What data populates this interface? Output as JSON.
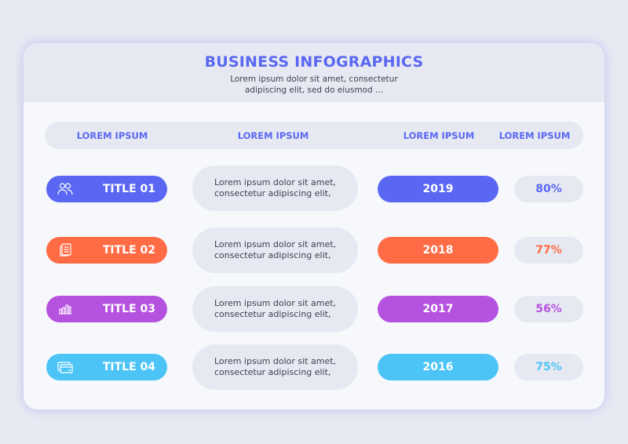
{
  "header": {
    "title": "BUSINESS INFOGRAPHICS",
    "subtitle_line1": "Lorem ipsum dolor sit amet, consectetur",
    "subtitle_line2": "adipiscing elit, sed do eiusmod ..."
  },
  "columns": [
    "LOREM IPSUM",
    "LOREM IPSUM",
    "LOREM IPSUM",
    "LOREM IPSUM"
  ],
  "rows": [
    {
      "title": "TITLE 01",
      "icon": "users-icon",
      "desc1": "Lorem ipsum dolor sit amet,",
      "desc2": "consectetur adipiscing elit,",
      "year": "2019",
      "percent": "80%",
      "color": "#5a67f2"
    },
    {
      "title": "TITLE 02",
      "icon": "document-icon",
      "desc1": "Lorem ipsum dolor sit amet,",
      "desc2": "consectetur adipiscing elit,",
      "year": "2018",
      "percent": "77%",
      "color": "#ff6b45"
    },
    {
      "title": "TITLE 03",
      "icon": "bar-chart-icon",
      "desc1": "Lorem ipsum dolor sit amet,",
      "desc2": "consectetur adipiscing elit,",
      "year": "2017",
      "percent": "56%",
      "color": "#b552e0"
    },
    {
      "title": "TITLE 04",
      "icon": "credit-card-icon",
      "desc1": "Lorem ipsum dolor sit amet,",
      "desc2": "consectetur adipiscing elit,",
      "year": "2016",
      "percent": "75%",
      "color": "#4cc4f6"
    }
  ]
}
